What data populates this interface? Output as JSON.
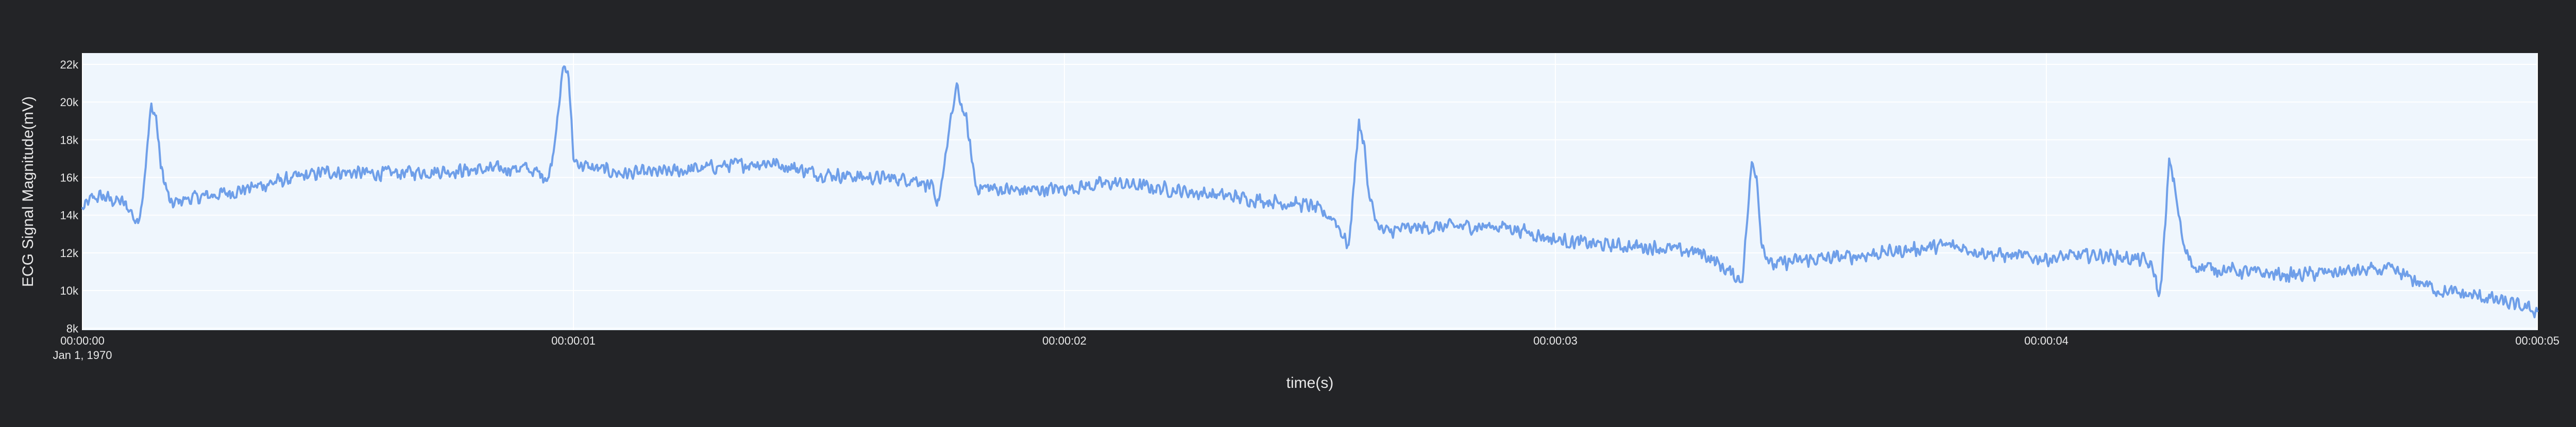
{
  "chart_data": {
    "type": "line",
    "title": "",
    "xlabel": "time(s)",
    "ylabel": "ECG Signal Magnitude(mV)",
    "xlim": [
      0,
      5
    ],
    "ylim": [
      7900,
      22600
    ],
    "x_ticks": [
      0,
      1,
      2,
      3,
      4,
      5
    ],
    "x_tick_labels": [
      "00:00:00",
      "00:00:01",
      "00:00:02",
      "00:00:03",
      "00:00:04",
      "00:00:05"
    ],
    "x_tick_sublabel": "Jan 1, 1970",
    "y_ticks": [
      8000,
      10000,
      12000,
      14000,
      16000,
      18000,
      20000,
      22000
    ],
    "y_tick_labels": [
      "8k",
      "10k",
      "12k",
      "14k",
      "16k",
      "18k",
      "20k",
      "22k"
    ],
    "grid": true,
    "legend": "none",
    "colors": {
      "paper_bg": "#232427",
      "plot_bg": "#eff6fd",
      "grid": "#ffffff",
      "line": "#6f9fe9",
      "text": "#e8e8e8"
    },
    "series": [
      {
        "x": [
          0,
          0.02,
          0.04,
          0.06,
          0.08,
          0.1,
          0.11,
          0.12,
          0.13,
          0.14,
          0.15,
          0.16,
          0.18,
          0.2,
          0.25,
          0.3,
          0.4,
          0.5,
          0.6,
          0.7,
          0.8,
          0.9,
          0.95,
          0.96,
          0.97,
          0.98,
          0.99,
          1.0,
          1.02,
          1.1,
          1.2,
          1.3,
          1.4,
          1.5,
          1.6,
          1.7,
          1.73,
          1.74,
          1.76,
          1.78,
          1.8,
          1.82,
          1.9,
          2.0,
          2.1,
          2.2,
          2.3,
          2.4,
          2.5,
          2.55,
          2.58,
          2.59,
          2.6,
          2.61,
          2.62,
          2.64,
          2.65,
          2.7,
          2.8,
          2.9,
          3.0,
          3.1,
          3.2,
          3.3,
          3.38,
          3.39,
          3.4,
          3.41,
          3.42,
          3.44,
          3.45,
          3.5,
          3.6,
          3.7,
          3.8,
          3.9,
          4.0,
          4.1,
          4.2,
          4.22,
          4.23,
          4.24,
          4.25,
          4.26,
          4.28,
          4.3,
          4.4,
          4.5,
          4.6,
          4.7,
          4.8,
          4.9,
          5.0
        ],
        "y": [
          14300,
          14900,
          15000,
          14800,
          14700,
          14200,
          13500,
          14500,
          17000,
          19800,
          19200,
          16500,
          14500,
          14800,
          15000,
          15200,
          15800,
          16300,
          16200,
          16300,
          16400,
          16500,
          16000,
          17500,
          20000,
          21800,
          21500,
          17000,
          16600,
          16200,
          16300,
          16600,
          16800,
          16200,
          16000,
          15900,
          15500,
          14200,
          17500,
          20800,
          19000,
          15500,
          15300,
          15400,
          15700,
          15400,
          15100,
          14800,
          14500,
          13800,
          12300,
          16000,
          18800,
          18000,
          15000,
          13400,
          13100,
          13300,
          13400,
          13400,
          12700,
          12400,
          12300,
          12000,
          10500,
          13500,
          16800,
          16200,
          12500,
          11300,
          11400,
          11600,
          11800,
          12100,
          12400,
          11900,
          11700,
          11900,
          11600,
          11000,
          9500,
          12600,
          16800,
          15800,
          12200,
          11300,
          11000,
          10800,
          11000,
          11100,
          10000,
          9600,
          8900
        ]
      }
    ]
  }
}
